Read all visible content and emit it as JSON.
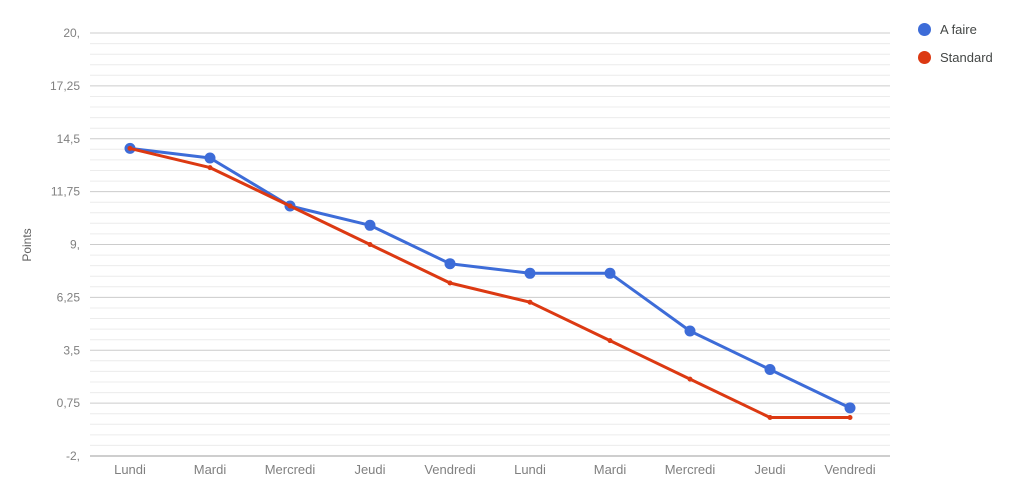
{
  "chart_data": {
    "type": "line",
    "title": "",
    "xlabel": "",
    "ylabel": "Points",
    "categories": [
      "Lundi",
      "Mardi",
      "Mercredi",
      "Jeudi",
      "Vendredi",
      "Lundi",
      "Mardi",
      "Mercredi",
      "Jeudi",
      "Vendredi"
    ],
    "series": [
      {
        "name": "A faire",
        "color": "#3d6cd8",
        "values": [
          14,
          13.5,
          11,
          10,
          8,
          7.5,
          7.5,
          4.5,
          2.5,
          0.5
        ],
        "marker": "circle",
        "marker_radius": 5.5,
        "line_width": 3
      },
      {
        "name": "Standard",
        "color": "#dc3912",
        "values": [
          14,
          13,
          11,
          9,
          7,
          6,
          4,
          2,
          0,
          0
        ],
        "marker": "dot",
        "marker_radius": 2.5,
        "line_width": 3
      }
    ],
    "ylim": [
      -2,
      20
    ],
    "y_ticks": [
      {
        "value": 20,
        "label": "20,"
      },
      {
        "value": 17.25,
        "label": "17,25"
      },
      {
        "value": 14.5,
        "label": "14,5"
      },
      {
        "value": 11.75,
        "label": "11,75"
      },
      {
        "value": 9,
        "label": "9,"
      },
      {
        "value": 6.25,
        "label": "6,25"
      },
      {
        "value": 3.5,
        "label": "3,5"
      },
      {
        "value": 0.75,
        "label": "0,75"
      },
      {
        "value": -2,
        "label": "-2,"
      }
    ],
    "grid": {
      "major_color": "#cccccc",
      "minor_color": "#ececec",
      "minor_steps_per_major": 5,
      "baseline_color": "#9e9e9e"
    },
    "legend_position": "top-right",
    "style": {
      "axis_text_color": "#808080",
      "axis_title_color": "#616161",
      "legend_text_color": "#444746"
    }
  }
}
